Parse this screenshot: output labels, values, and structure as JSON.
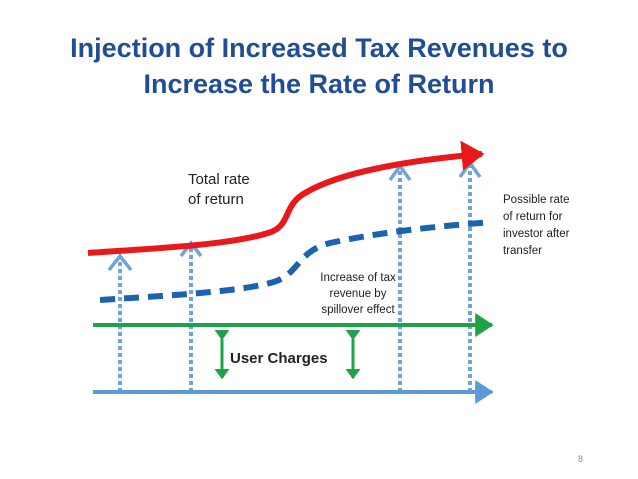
{
  "title": {
    "line1": "Injection of Increased Tax Revenues to",
    "line2": "Increase the Rate of Return"
  },
  "labels": {
    "total_rate": [
      "Total rate",
      "of return"
    ],
    "possible_rate": [
      "Possible rate",
      "of return for",
      "investor after",
      "transfer"
    ],
    "increase_tax": [
      "Increase of tax",
      "revenue by",
      "spillover effect"
    ],
    "user_charges": "User Charges"
  },
  "page_number": "8",
  "colors": {
    "title": "#1f4e96",
    "total_rate_curve": "#e8191a",
    "possible_rate_curve": "#1b63b0",
    "user_charges_line": "#1fa34a",
    "base_line": "#5b9bd5",
    "dotted_arrows": "#6fa3dc"
  }
}
